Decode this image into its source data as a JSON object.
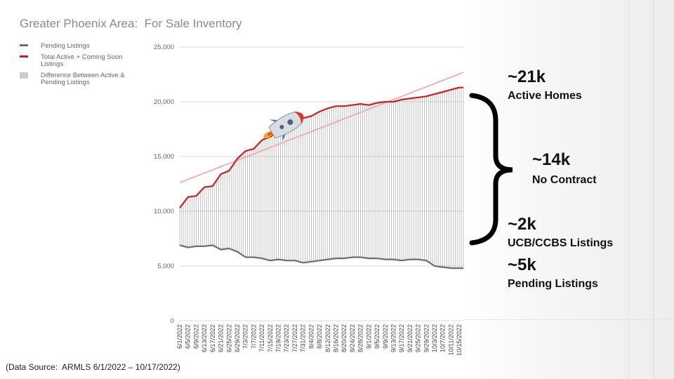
{
  "title": "Greater Phoenix Area:  For Sale Inventory",
  "legend": [
    {
      "label": "Pending Listings",
      "color": "#6e6e6e"
    },
    {
      "label": "Total Active + Coming Soon Listings",
      "color": "#d01f1f"
    },
    {
      "label": "Difference Between Active & Pending Listings",
      "color": "#cccccc"
    }
  ],
  "annotations": {
    "active_value": "~21k",
    "active_label": "Active Homes",
    "no_contract_value": "~14k",
    "no_contract_label": "No Contract",
    "ucb_value": "~2k",
    "ucb_label": "UCB/CCBS Listings",
    "pending_value": "~5k",
    "pending_label": "Pending Listings"
  },
  "source": "(Data Source:  ARMLS 6/1/2022 – 10/17/2022)",
  "colors": {
    "active": "#d01f1f",
    "pending": "#6e6e6e",
    "trend": "#f2a3a3",
    "bars": "#9a9a9a",
    "grid": "#d9d9d9"
  },
  "chart_data": {
    "type": "line",
    "y_ticks": [
      "25,000",
      "20,000",
      "15,000",
      "10,000",
      "5,000",
      "0"
    ],
    "ylim": [
      0,
      25000
    ],
    "x_tick_labels": [
      "6/1/2022",
      "6/5/2022",
      "6/9/2022",
      "6/13/2022",
      "6/17/2022",
      "6/21/2022",
      "6/25/2022",
      "6/29/2022",
      "7/3/2022",
      "7/7/2022",
      "7/11/2022",
      "7/15/2022",
      "7/19/2022",
      "7/23/2022",
      "7/27/2022",
      "7/31/2022",
      "8/4/2022",
      "8/8/2022",
      "8/12/2022",
      "8/16/2022",
      "8/20/2022",
      "8/24/2022",
      "8/28/2022",
      "9/1/2022",
      "9/5/2022",
      "9/9/2022",
      "9/13/2022",
      "9/17/2022",
      "9/21/2022",
      "9/25/2022",
      "9/29/2022",
      "10/3/2022",
      "10/7/2022",
      "10/11/2022",
      "10/15/2022"
    ],
    "grid": true,
    "series": [
      {
        "name": "Total Active + Coming Soon Listings",
        "x": [
          "6/1/2022",
          "6/5/2022",
          "6/9/2022",
          "6/13/2022",
          "6/17/2022",
          "6/21/2022",
          "6/25/2022",
          "6/29/2022",
          "7/3/2022",
          "7/7/2022",
          "7/11/2022",
          "7/15/2022",
          "7/19/2022",
          "7/23/2022",
          "7/27/2022",
          "7/31/2022",
          "8/4/2022",
          "8/8/2022",
          "8/12/2022",
          "8/16/2022",
          "8/20/2022",
          "8/24/2022",
          "8/28/2022",
          "9/1/2022",
          "9/5/2022",
          "9/9/2022",
          "9/13/2022",
          "9/17/2022",
          "9/21/2022",
          "9/25/2022",
          "9/29/2022",
          "10/3/2022",
          "10/7/2022",
          "10/11/2022",
          "10/15/2022",
          "10/17/2022"
        ],
        "values": [
          10300,
          11300,
          11400,
          12200,
          12300,
          13400,
          13700,
          14800,
          15500,
          15700,
          16500,
          16800,
          17300,
          17700,
          18200,
          18500,
          18700,
          19100,
          19400,
          19600,
          19600,
          19700,
          19800,
          19700,
          19900,
          20000,
          20000,
          20200,
          20300,
          20400,
          20500,
          20700,
          20900,
          21100,
          21300,
          21300
        ]
      },
      {
        "name": "Pending Listings",
        "x": [
          "6/1/2022",
          "6/5/2022",
          "6/9/2022",
          "6/13/2022",
          "6/17/2022",
          "6/21/2022",
          "6/25/2022",
          "6/29/2022",
          "7/3/2022",
          "7/7/2022",
          "7/11/2022",
          "7/15/2022",
          "7/19/2022",
          "7/23/2022",
          "7/27/2022",
          "7/31/2022",
          "8/4/2022",
          "8/8/2022",
          "8/12/2022",
          "8/16/2022",
          "8/20/2022",
          "8/24/2022",
          "8/28/2022",
          "9/1/2022",
          "9/5/2022",
          "9/9/2022",
          "9/13/2022",
          "9/17/2022",
          "9/21/2022",
          "9/25/2022",
          "9/29/2022",
          "10/3/2022",
          "10/7/2022",
          "10/11/2022",
          "10/15/2022",
          "10/17/2022"
        ],
        "values": [
          6900,
          6700,
          6800,
          6800,
          6900,
          6500,
          6600,
          6300,
          5800,
          5800,
          5700,
          5500,
          5600,
          5500,
          5500,
          5300,
          5400,
          5500,
          5600,
          5700,
          5700,
          5800,
          5800,
          5700,
          5700,
          5600,
          5600,
          5500,
          5600,
          5600,
          5500,
          5000,
          4900,
          4800,
          4800,
          4800
        ]
      }
    ]
  }
}
